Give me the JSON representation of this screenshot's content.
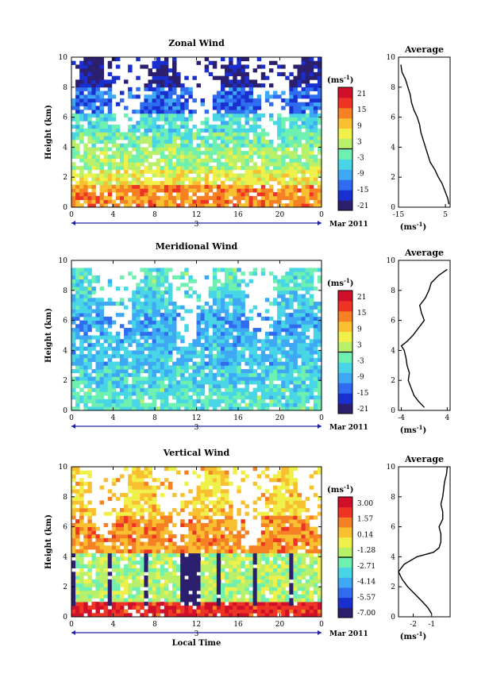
{
  "chart_data": [
    {
      "type": "heatmap",
      "title": "Zonal Wind",
      "ylabel": "Height (km)",
      "xlim": [
        0,
        24
      ],
      "ylim": [
        0,
        10
      ],
      "x_ticks": [
        "0",
        "4",
        "8",
        "12",
        "16",
        "20",
        "0"
      ],
      "y_ticks": [
        "0",
        "2",
        "4",
        "6",
        "8",
        "10"
      ],
      "date_axis": {
        "day": "3",
        "month_label": "Mar 2011"
      },
      "colorbar": {
        "unit": "(ms",
        "unit_sup": "-1",
        "unit_end": ")",
        "levels": [
          "21",
          "15",
          "9",
          "3",
          "-3",
          "-9",
          "-15",
          "-21"
        ],
        "range": [
          -24,
          24
        ]
      },
      "profile": {
        "title": "Average",
        "xlim": [
          -15,
          7
        ],
        "x_ticks": [
          "-15",
          "5"
        ],
        "xlabel": "(ms",
        "xlabel_sup": "-1",
        "xlabel_end": ")",
        "y_ticks": [
          "0",
          "2",
          "4",
          "6",
          "8",
          "10"
        ],
        "height": [
          0.2,
          0.6,
          1.0,
          1.6,
          2.0,
          2.5,
          3.0,
          3.5,
          4.0,
          4.5,
          5.0,
          5.5,
          6.0,
          6.5,
          7.0,
          7.5,
          8.0,
          8.5,
          9.0,
          9.5
        ],
        "value": [
          6.5,
          6.0,
          5.0,
          3.5,
          2.0,
          0.5,
          -1.5,
          -2.5,
          -3.5,
          -4.5,
          -5.5,
          -6.0,
          -7.0,
          -8.5,
          -9.5,
          -10.0,
          -11.0,
          -12.0,
          -13.5,
          -14.0
        ]
      },
      "bands": [
        {
          "y0": 0,
          "y1": 1.5,
          "value": 13
        },
        {
          "y0": 1.5,
          "y1": 2.5,
          "value": 6
        },
        {
          "y0": 2.5,
          "y1": 4,
          "value": 1
        },
        {
          "y0": 4,
          "y1": 5,
          "value": -2
        },
        {
          "y0": 5,
          "y1": 6.2,
          "value": -5
        },
        {
          "y0": 6.2,
          "y1": 8,
          "value": -14
        },
        {
          "y0": 8,
          "y1": 10,
          "value": -21
        }
      ]
    },
    {
      "type": "heatmap",
      "title": "Meridional Wind",
      "ylabel": "Height (km)",
      "xlim": [
        0,
        24
      ],
      "ylim": [
        0,
        10
      ],
      "x_ticks": [
        "0",
        "4",
        "8",
        "12",
        "16",
        "20",
        "0"
      ],
      "y_ticks": [
        "0",
        "2",
        "4",
        "6",
        "8",
        "10"
      ],
      "date_axis": {
        "day": "3",
        "month_label": "Mar 2011"
      },
      "colorbar": {
        "unit": "(ms",
        "unit_sup": "-1",
        "unit_end": ")",
        "levels": [
          "21",
          "15",
          "9",
          "3",
          "-3",
          "-9",
          "-15",
          "-21"
        ],
        "range": [
          -24,
          24
        ]
      },
      "profile": {
        "title": "Average",
        "xlim": [
          -4.5,
          4.5
        ],
        "x_ticks": [
          "-4",
          "4"
        ],
        "xlabel": "(ms",
        "xlabel_sup": "-1",
        "xlabel_end": ")",
        "y_ticks": [
          "0",
          "2",
          "4",
          "6",
          "8",
          "10"
        ],
        "height": [
          0.2,
          0.6,
          1.0,
          1.5,
          2.0,
          2.5,
          3.0,
          3.5,
          4.0,
          4.3,
          4.6,
          5.0,
          5.5,
          6.0,
          6.5,
          7.0,
          7.5,
          8.0,
          8.5,
          9.0,
          9.4
        ],
        "value": [
          0.0,
          -1.0,
          -1.8,
          -2.3,
          -2.8,
          -2.6,
          -3.0,
          -3.2,
          -3.5,
          -4.0,
          -3.0,
          -2.0,
          -1.0,
          0.0,
          -0.5,
          -0.8,
          0.2,
          0.8,
          1.2,
          2.5,
          4.0
        ]
      },
      "bands": [
        {
          "y0": 0,
          "y1": 1.5,
          "value": -4
        },
        {
          "y0": 1.5,
          "y1": 3,
          "value": -6
        },
        {
          "y0": 3,
          "y1": 5,
          "value": -8
        },
        {
          "y0": 5,
          "y1": 6.5,
          "value": -10
        },
        {
          "y0": 6.5,
          "y1": 8,
          "value": -7
        },
        {
          "y0": 8,
          "y1": 9.4,
          "value": -4
        }
      ]
    },
    {
      "type": "heatmap",
      "title": "Vertical Wind",
      "xlabel": "Local Time",
      "ylabel": "Height (km)",
      "xlim": [
        0,
        24
      ],
      "ylim": [
        0,
        10
      ],
      "x_ticks": [
        "0",
        "4",
        "8",
        "12",
        "16",
        "20",
        "0"
      ],
      "y_ticks": [
        "0",
        "2",
        "4",
        "6",
        "8",
        "10"
      ],
      "date_axis": {
        "day": "3",
        "month_label": "Mar 2011"
      },
      "colorbar": {
        "unit": "(ms",
        "unit_sup": "-1",
        "unit_end": ")",
        "levels": [
          "3.00",
          "1.57",
          "0.14",
          "-1.28",
          "-2.71",
          "-4.14",
          "-5.57",
          "-7.00"
        ],
        "range": [
          -7.7,
          3.7
        ]
      },
      "profile": {
        "title": "Average",
        "xlim": [
          -2.8,
          0.0
        ],
        "x_ticks": [
          "-2",
          "-1"
        ],
        "xlabel": "(ms",
        "xlabel_sup": "-1",
        "xlabel_end": ")",
        "y_ticks": [
          "0",
          "2",
          "4",
          "6",
          "8",
          "10"
        ],
        "height": [
          0.2,
          0.6,
          1.0,
          1.5,
          2.0,
          2.5,
          3.0,
          3.5,
          4.0,
          4.3,
          4.6,
          5.0,
          5.5,
          6.0,
          6.5,
          7.0,
          7.5,
          8.0,
          8.5,
          9.0,
          9.5,
          10.0
        ],
        "value": [
          -1.0,
          -1.2,
          -1.5,
          -1.9,
          -2.3,
          -2.6,
          -2.8,
          -2.5,
          -1.8,
          -0.9,
          -0.6,
          -0.5,
          -0.5,
          -0.6,
          -0.4,
          -0.4,
          -0.5,
          -0.4,
          -0.35,
          -0.3,
          -0.2,
          -0.15
        ]
      },
      "bands": [
        {
          "y0": 0,
          "y1": 1,
          "value": 2.6
        },
        {
          "y0": 1,
          "y1": 4.3,
          "value": -1.6
        },
        {
          "y0": 4.3,
          "y1": 6.8,
          "value": 1.0
        },
        {
          "y0": 6.8,
          "y1": 10,
          "value": 0.0
        }
      ]
    }
  ],
  "colors": {
    "palette": [
      "#2b1f6e",
      "#1a2fd0",
      "#2f6cf0",
      "#3fa8f4",
      "#48d6e6",
      "#6ef0b0",
      "#b8f06a",
      "#f0f04a",
      "#f8c030",
      "#f68024",
      "#ee3424",
      "#d0102a"
    ],
    "axis": "#2020a0"
  }
}
